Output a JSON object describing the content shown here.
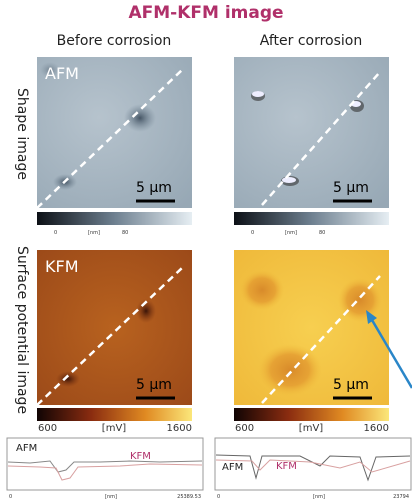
{
  "title": "AFM-KFM image",
  "columns": [
    "Before corrosion",
    "After corrosion"
  ],
  "rows": [
    "Shape image",
    "Surface potential image"
  ],
  "panels": {
    "afm_label": "AFM",
    "kfm_label": "KFM",
    "scale_bar": "5 µm"
  },
  "colorbars": {
    "afm": [
      "0",
      "[nm]",
      "80"
    ],
    "kfm": [
      "600",
      "[mV]",
      "1600"
    ]
  },
  "profiles": {
    "afm_label": "AFM",
    "kfm_label": "KFM",
    "left_axis": [
      "0",
      "[nm]",
      "25389.53"
    ],
    "right_axis": [
      "0",
      "[nm]",
      "23794"
    ]
  }
}
